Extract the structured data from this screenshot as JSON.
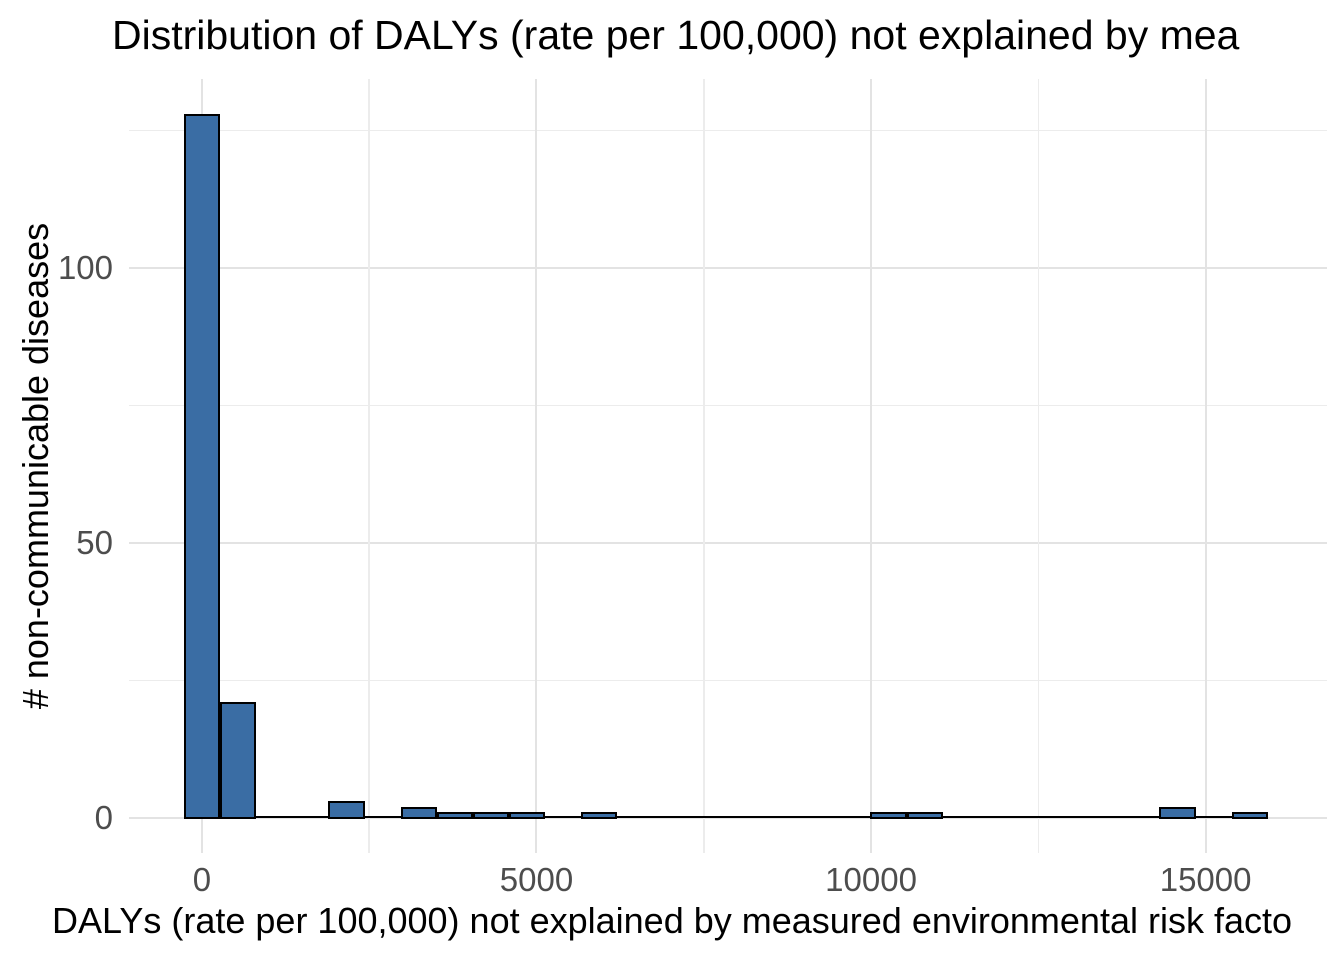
{
  "title": "Distribution of DALYs (rate per 100,000) not explained by mea",
  "x_axis": {
    "title": "DALYs (rate per 100,000) not explained by measured environmental risk facto",
    "tick_labels": [
      "0",
      "5000",
      "10000",
      "15000"
    ]
  },
  "y_axis": {
    "title": "# non-communicable diseases",
    "tick_labels": [
      "0",
      "50",
      "100"
    ]
  },
  "chart_data": {
    "type": "bar",
    "subtype": "histogram",
    "title": "Distribution of DALYs (rate per 100,000) not explained by mea",
    "xlabel": "DALYs (rate per 100,000) not explained by measured environmental risk facto",
    "ylabel": "# non-communicable diseases",
    "bin_width": 540,
    "bins": [
      {
        "center": 0,
        "count": 128
      },
      {
        "center": 540,
        "count": 21
      },
      {
        "center": 2160,
        "count": 3
      },
      {
        "center": 3240,
        "count": 2
      },
      {
        "center": 3780,
        "count": 1
      },
      {
        "center": 4320,
        "count": 1
      },
      {
        "center": 4860,
        "count": 1
      },
      {
        "center": 5940,
        "count": 1
      },
      {
        "center": 10260,
        "count": 1
      },
      {
        "center": 10800,
        "count": 1
      },
      {
        "center": 14580,
        "count": 2
      },
      {
        "center": 15660,
        "count": 1
      }
    ],
    "data_range": [
      -270,
      15930
    ],
    "x_major_ticks": [
      0,
      5000,
      10000,
      15000
    ],
    "x_minor_ticks": [
      2500,
      7500,
      12500
    ],
    "y_major_ticks": [
      0,
      50,
      100
    ],
    "y_minor_ticks": [
      25,
      75,
      125
    ],
    "xlim": [
      -1090,
      16814
    ],
    "ylim": [
      -6.4,
      134.4
    ],
    "grid": true,
    "legend": "none",
    "colors": {
      "bar_fill": "#3A6DA4",
      "bar_stroke": "#000000",
      "grid_major": "#E3E3E3",
      "grid_minor": "#ECECEC",
      "tick_text": "#4D4D4D",
      "title_text": "#000000",
      "background": "#FFFFFF"
    }
  }
}
